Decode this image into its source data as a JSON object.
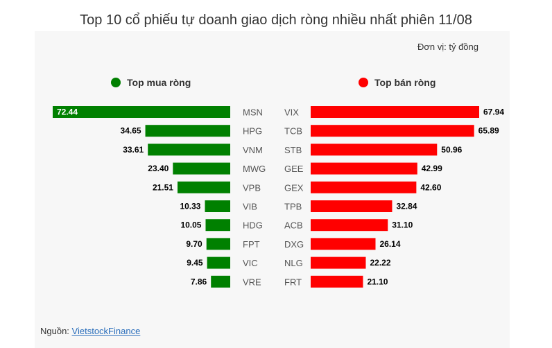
{
  "title": "Top 10 cổ phiếu tự doanh giao dịch ròng nhiều nhất phiên 11/08",
  "unit_label": "Đơn vị: tỷ đồng",
  "source": {
    "prefix": "Nguồn: ",
    "link_text": "VietstockFinance"
  },
  "colors": {
    "buy": "#008000",
    "sell": "#ff0000"
  },
  "chart_data": [
    {
      "type": "bar",
      "orientation": "horizontal",
      "direction": "right-to-left",
      "legend": "Top mua ròng",
      "categories": [
        "MSN",
        "HPG",
        "VNM",
        "MWG",
        "VPB",
        "VIB",
        "HDG",
        "FPT",
        "VIC",
        "VRE"
      ],
      "values": [
        72.44,
        34.65,
        33.61,
        23.4,
        21.51,
        10.33,
        10.05,
        9.7,
        9.45,
        7.86
      ],
      "value_labels": [
        "72.44",
        "34.65",
        "33.61",
        "23.40",
        "21.51",
        "10.33",
        "10.05",
        "9.70",
        "9.45",
        "7.86"
      ],
      "xlim": [
        0,
        72.44
      ]
    },
    {
      "type": "bar",
      "orientation": "horizontal",
      "direction": "left-to-right",
      "legend": "Top bán ròng",
      "categories": [
        "VIX",
        "TCB",
        "STB",
        "GEE",
        "GEX",
        "TPB",
        "ACB",
        "DXG",
        "NLG",
        "FRT"
      ],
      "values": [
        67.94,
        65.89,
        50.96,
        42.99,
        42.6,
        32.84,
        31.1,
        26.14,
        22.22,
        21.1
      ],
      "value_labels": [
        "67.94",
        "65.89",
        "50.96",
        "42.99",
        "42.60",
        "32.84",
        "31.10",
        "26.14",
        "22.22",
        "21.10"
      ],
      "xlim": [
        0,
        67.94
      ]
    }
  ]
}
